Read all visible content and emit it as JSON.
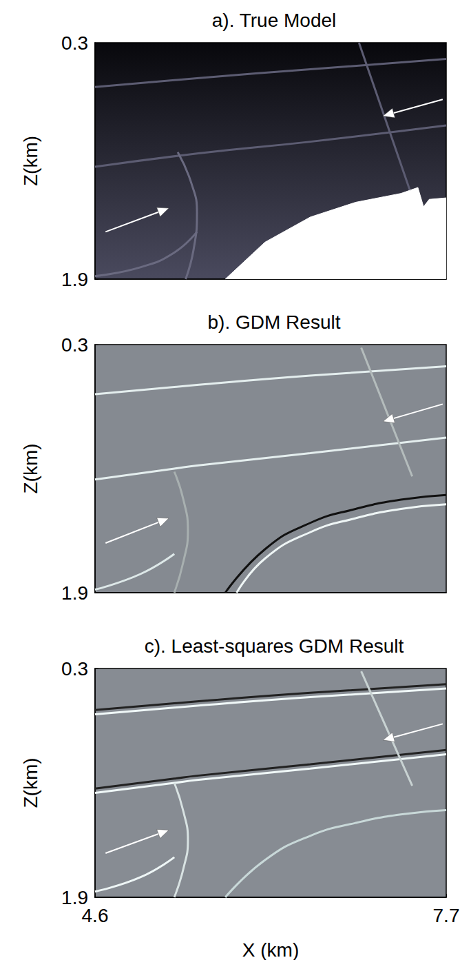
{
  "chart_data": [
    {
      "type": "line",
      "title": "a). True Model",
      "y_label": "Z(km)",
      "xlim": [
        4.6,
        7.7
      ],
      "ylim": [
        0.3,
        1.9
      ],
      "yticks": [
        0.3,
        1.9
      ],
      "tick_labels": "y",
      "series": [
        {
          "color": "#5c5c72",
          "x": [
            4.6,
            5.5,
            6.5,
            7.7
          ],
          "values": [
            0.6,
            0.54,
            0.48,
            0.41
          ]
        },
        {
          "color": "#5c5c72",
          "x": [
            4.6,
            5.5,
            6.5,
            7.7
          ],
          "values": [
            1.14,
            1.05,
            0.97,
            0.86
          ]
        },
        {
          "color": "#5c5c72",
          "x": [
            6.93,
            7.38
          ],
          "values": [
            0.3,
            1.3
          ]
        },
        {
          "color": "#6a6a80",
          "x": [
            5.33,
            5.45,
            5.5,
            5.47,
            5.4
          ],
          "values": [
            1.04,
            1.25,
            1.45,
            1.7,
            1.9
          ]
        },
        {
          "color": "#6a6a80",
          "x": [
            4.6,
            5.0,
            5.3,
            5.5
          ],
          "values": [
            1.88,
            1.82,
            1.72,
            1.58
          ]
        },
        {
          "type": "area",
          "color": "#ffffff",
          "x": [
            5.75,
            6.1,
            6.5,
            6.9,
            7.3,
            7.45,
            7.5,
            7.55,
            7.7
          ],
          "values": [
            1.9,
            1.65,
            1.48,
            1.38,
            1.32,
            1.28,
            1.41,
            1.36,
            1.35
          ]
        }
      ]
    },
    {
      "type": "line",
      "title": "b). GDM Result",
      "y_label": "Z(km)",
      "xlim": [
        4.6,
        7.7
      ],
      "ylim": [
        0.3,
        1.9
      ],
      "yticks": [
        0.3,
        1.9
      ],
      "tick_labels": "y",
      "series": [
        {
          "color": "#e4eeee",
          "x": [
            4.6,
            5.5,
            6.5,
            7.7
          ],
          "values": [
            0.62,
            0.56,
            0.5,
            0.44
          ]
        },
        {
          "color": "#e4eeee",
          "x": [
            4.6,
            5.3,
            5.5,
            6.5,
            7.7
          ],
          "values": [
            1.17,
            1.1,
            1.08,
            1.0,
            0.9
          ]
        },
        {
          "color": "#b4bcbc",
          "x": [
            6.95,
            7.4
          ],
          "values": [
            0.32,
            1.15
          ]
        },
        {
          "color": "#a8b0b0",
          "x": [
            5.3,
            5.38,
            5.42,
            5.38,
            5.3
          ],
          "values": [
            1.12,
            1.3,
            1.5,
            1.7,
            1.9
          ]
        },
        {
          "color": "#dde8e8",
          "x": [
            4.6,
            5.0,
            5.3
          ],
          "values": [
            1.88,
            1.78,
            1.65
          ]
        },
        {
          "color": "#111111",
          "x": [
            5.75,
            6.1,
            6.5,
            6.9,
            7.3,
            7.7
          ],
          "values": [
            1.9,
            1.62,
            1.45,
            1.36,
            1.3,
            1.27
          ]
        },
        {
          "color": "#eef5f5",
          "x": [
            5.85,
            6.1,
            6.5,
            6.9,
            7.3,
            7.7
          ],
          "values": [
            1.9,
            1.68,
            1.51,
            1.42,
            1.36,
            1.33
          ]
        }
      ]
    },
    {
      "type": "line",
      "title": "c). Least-squares GDM Result",
      "y_label": "Z(km)",
      "x_label": "X (km)",
      "xlim": [
        4.6,
        7.7
      ],
      "ylim": [
        0.3,
        1.9
      ],
      "xticks": [
        4.6,
        7.7
      ],
      "yticks": [
        0.3,
        1.9
      ],
      "tick_labels": true,
      "series": [
        {
          "color": "#222222",
          "x": [
            4.6,
            5.5,
            6.5,
            7.7
          ],
          "values": [
            0.59,
            0.53,
            0.47,
            0.41
          ]
        },
        {
          "color": "#f0f8f8",
          "x": [
            4.6,
            5.5,
            6.5,
            7.7
          ],
          "values": [
            0.62,
            0.56,
            0.5,
            0.44
          ]
        },
        {
          "color": "#222222",
          "x": [
            4.6,
            5.3,
            5.5,
            6.5,
            7.7
          ],
          "values": [
            1.14,
            1.07,
            1.05,
            0.97,
            0.87
          ]
        },
        {
          "color": "#f0f8f8",
          "x": [
            4.6,
            5.3,
            5.5,
            6.5,
            7.7
          ],
          "values": [
            1.17,
            1.1,
            1.08,
            1.0,
            0.9
          ]
        },
        {
          "color": "#c8d2d2",
          "x": [
            6.95,
            7.4
          ],
          "values": [
            0.32,
            1.12
          ]
        },
        {
          "color": "#d8e2e2",
          "x": [
            5.3,
            5.38,
            5.42,
            5.38,
            5.3
          ],
          "values": [
            1.1,
            1.3,
            1.5,
            1.7,
            1.9
          ]
        },
        {
          "color": "#eef6f6",
          "x": [
            4.6,
            5.0,
            5.3
          ],
          "values": [
            1.86,
            1.76,
            1.62
          ]
        },
        {
          "color": "#c8d8d8",
          "x": [
            5.75,
            6.1,
            6.5,
            6.9,
            7.3,
            7.7
          ],
          "values": [
            1.9,
            1.64,
            1.47,
            1.38,
            1.32,
            1.29
          ]
        }
      ]
    }
  ]
}
